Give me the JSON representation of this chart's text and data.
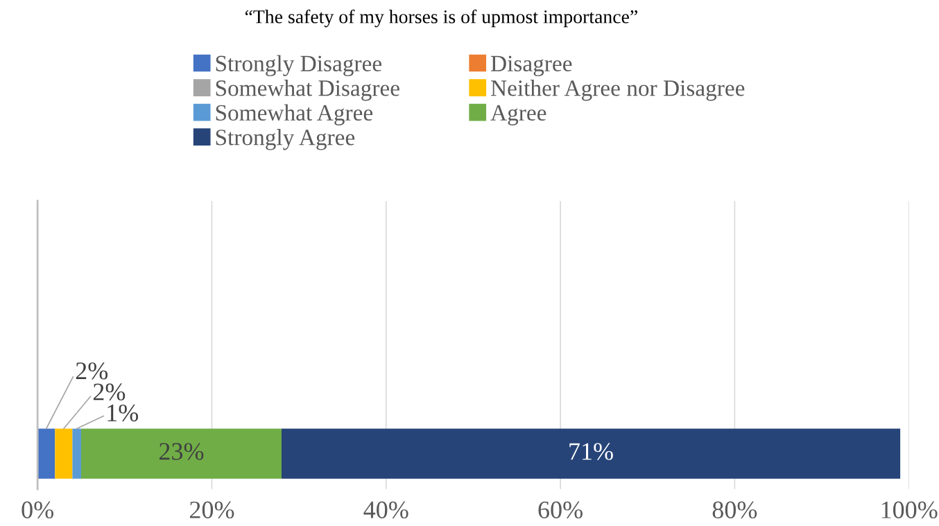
{
  "chart_data": {
    "type": "bar",
    "orientation": "horizontal",
    "stacked": true,
    "title": "“The safety of my horses is of upmost importance”",
    "categories": [
      null
    ],
    "series": [
      {
        "name": "Strongly Disagree",
        "color": "#4472c4",
        "values": [
          2
        ],
        "value_labels": [
          "2%"
        ]
      },
      {
        "name": "Disagree",
        "color": "#ed7d31",
        "values": [
          0
        ],
        "value_labels": [
          null
        ]
      },
      {
        "name": "Somewhat Disagree",
        "color": "#a5a5a5",
        "values": [
          0
        ],
        "value_labels": [
          null
        ]
      },
      {
        "name": "Neither Agree nor Disagree",
        "color": "#ffc000",
        "values": [
          2
        ],
        "value_labels": [
          "2%"
        ]
      },
      {
        "name": "Somewhat Agree",
        "color": "#5b9bd5",
        "values": [
          1
        ],
        "value_labels": [
          "1%"
        ]
      },
      {
        "name": "Agree",
        "color": "#70ad47",
        "values": [
          23
        ],
        "value_labels": [
          "23%"
        ]
      },
      {
        "name": "Strongly Agree",
        "color": "#264478",
        "values": [
          71
        ],
        "value_labels": [
          "71%"
        ]
      }
    ],
    "xlim": [
      0,
      100
    ],
    "xticks": [
      {
        "value": 0,
        "label": "0%"
      },
      {
        "value": 20,
        "label": "20%"
      },
      {
        "value": 40,
        "label": "40%"
      },
      {
        "value": 60,
        "label": "60%"
      },
      {
        "value": 80,
        "label": "80%"
      },
      {
        "value": 100,
        "label": "100%"
      }
    ],
    "grid": "x",
    "legend": "top"
  }
}
